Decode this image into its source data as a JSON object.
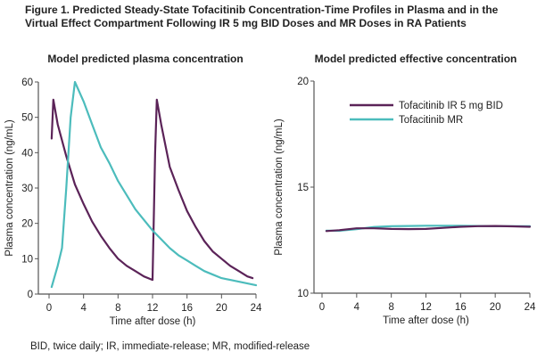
{
  "figure": {
    "title": "Figure 1. Predicted Steady-State Tofacitinib Concentration-Time Profiles in Plasma and in the Virtual Effect Compartment Following IR 5 mg BID Doses and MR Doses in RA Patients",
    "footnote": "BID, twice daily; IR, immediate-release; MR, modified-release"
  },
  "colors": {
    "ir": "#5b2358",
    "mr": "#4cbcbc",
    "axis": "#555555"
  },
  "chart_data": [
    {
      "type": "line",
      "title": "Model predicted plasma concentration",
      "xlabel": "Time after dose (h)",
      "ylabel": "Plasma concentration (ng/mL)",
      "xlim": [
        0,
        24
      ],
      "ylim": [
        0,
        60
      ],
      "xticks": [
        0,
        4,
        8,
        12,
        16,
        20,
        24
      ],
      "yticks": [
        0,
        10,
        20,
        30,
        40,
        50,
        60
      ],
      "grid": false,
      "series": [
        {
          "name": "Tofacitinib IR 5 mg BID",
          "x": [
            0.3,
            0.5,
            1,
            2,
            3,
            4,
            5,
            6,
            7,
            8,
            9,
            10,
            11,
            12,
            12.3,
            12.5,
            13,
            14,
            15,
            16,
            17,
            18,
            19,
            20,
            21,
            22,
            23,
            23.6
          ],
          "y": [
            44,
            55,
            48,
            39,
            31,
            25.5,
            20.5,
            16.5,
            13,
            10,
            8,
            6.5,
            5,
            4,
            40,
            55,
            48,
            36,
            29.5,
            23.5,
            19,
            15,
            12,
            10,
            8,
            6.5,
            5,
            4.5
          ]
        },
        {
          "name": "Tofacitinib MR",
          "x": [
            0.3,
            1,
            1.5,
            2,
            2.5,
            3,
            4,
            5,
            6,
            7,
            8,
            9,
            10,
            11,
            12,
            13,
            14,
            15,
            16,
            17,
            18,
            19,
            20,
            21,
            22,
            23,
            24
          ],
          "y": [
            2,
            8,
            13,
            30,
            50,
            60,
            54.5,
            48,
            41.5,
            37,
            32,
            28,
            24,
            21,
            18,
            15.5,
            13,
            11,
            9.5,
            8,
            6.5,
            5.5,
            4.5,
            4,
            3.5,
            3,
            2.5
          ]
        }
      ]
    },
    {
      "type": "line",
      "title": "Model predicted effective concentration",
      "xlabel": "Time after dose (h)",
      "ylabel": "Plasma concentration (ng/mL)",
      "xlim": [
        0,
        24
      ],
      "ylim": [
        10,
        20
      ],
      "xticks": [
        0,
        4,
        8,
        12,
        16,
        20,
        24
      ],
      "yticks": [
        10,
        15,
        20
      ],
      "grid": false,
      "legend": "top-right",
      "series": [
        {
          "name": "Tofacitinib IR 5 mg BID",
          "x": [
            0.5,
            2,
            4,
            6,
            8,
            10,
            12,
            14,
            16,
            18,
            20,
            22,
            24
          ],
          "y": [
            12.93,
            12.97,
            13.06,
            13.06,
            13.03,
            13.02,
            13.03,
            13.08,
            13.13,
            13.16,
            13.17,
            13.15,
            13.13
          ]
        },
        {
          "name": "Tofacitinib MR",
          "x": [
            0.5,
            2,
            4,
            6,
            8,
            10,
            12,
            14,
            16,
            18,
            20,
            22,
            24
          ],
          "y": [
            12.95,
            12.94,
            13.02,
            13.12,
            13.16,
            13.17,
            13.18,
            13.18,
            13.18,
            13.17,
            13.16,
            13.16,
            13.16
          ]
        }
      ]
    }
  ]
}
